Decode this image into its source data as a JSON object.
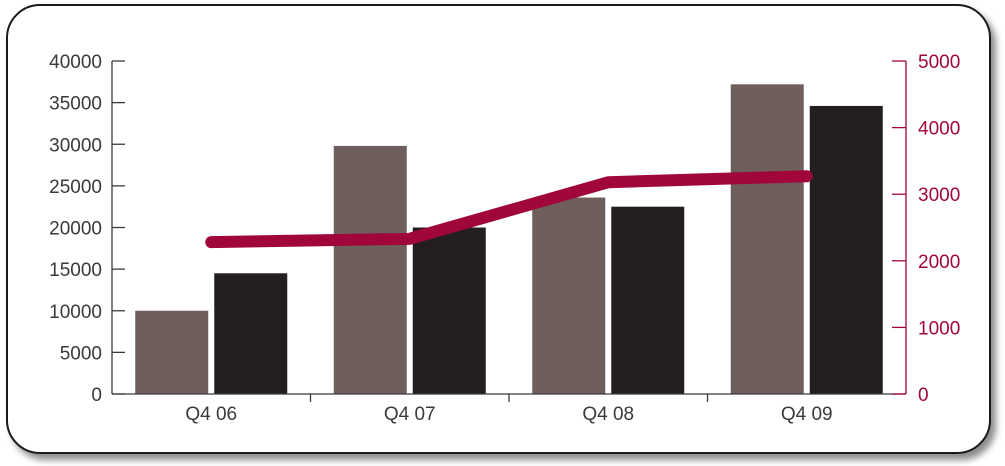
{
  "chart_data": {
    "type": "bar",
    "categories": [
      "Q4 06",
      "Q4 07",
      "Q4 08",
      "Q4 09"
    ],
    "series": [
      {
        "type": "bar",
        "axis": "left",
        "color": "#6e5e5c",
        "values": [
          10000,
          29800,
          23600,
          37200
        ]
      },
      {
        "type": "bar",
        "axis": "left",
        "color": "#231f20",
        "values": [
          14500,
          20000,
          22500,
          34600
        ]
      },
      {
        "type": "line",
        "axis": "right",
        "color": "#a0063a",
        "values": [
          2280,
          2330,
          3180,
          3270
        ]
      }
    ],
    "y_left": {
      "ticks": [
        0,
        5000,
        10000,
        15000,
        20000,
        25000,
        30000,
        35000,
        40000
      ],
      "lim": [
        0,
        40000
      ],
      "color": "#3a3a3a"
    },
    "y_right": {
      "ticks": [
        0,
        1000,
        2000,
        3000,
        4000,
        5000
      ],
      "lim": [
        0,
        5000
      ],
      "color": "#a0063a"
    },
    "xlabel": "",
    "ylabel": "",
    "title": "",
    "grid": false,
    "legend": "none"
  }
}
